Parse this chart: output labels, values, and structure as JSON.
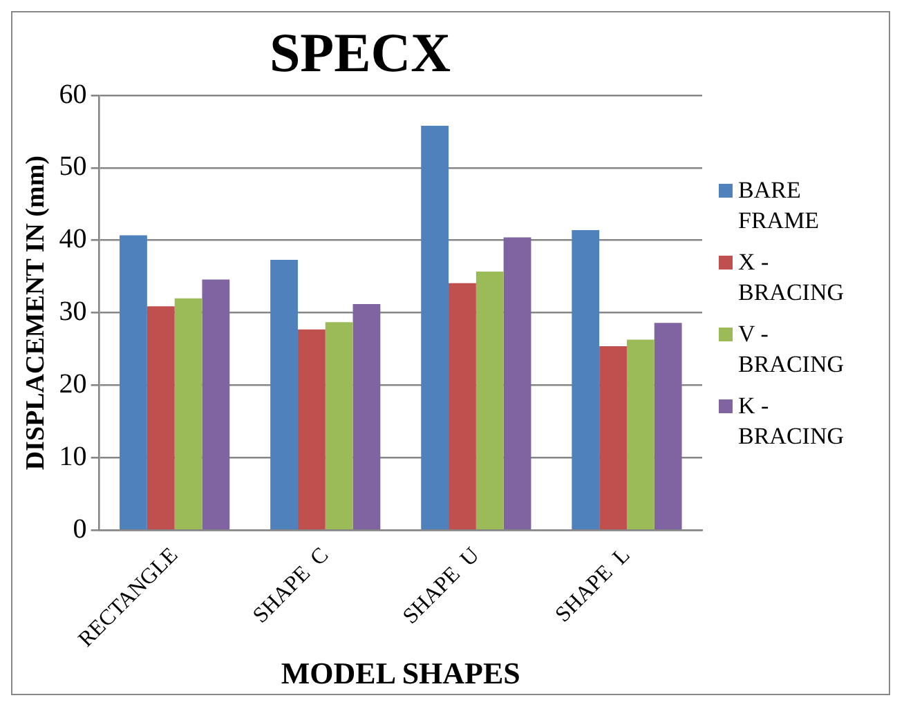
{
  "chart_data": {
    "type": "bar",
    "title": "SPECX",
    "xlabel": "MODEL SHAPES",
    "ylabel": "DISPLACEMENT IN (mm)",
    "categories": [
      "RECTANGLE",
      "SHAPE  C",
      "SHAPE  U",
      "SHAPE  L"
    ],
    "series": [
      {
        "name": "BARE FRAME",
        "color": "#4f81bd",
        "values": [
          40.7,
          37.3,
          55.8,
          41.4
        ]
      },
      {
        "name": "X - BRACING",
        "color": "#c0504d",
        "values": [
          30.9,
          27.7,
          34.1,
          25.4
        ]
      },
      {
        "name": "V - BRACING",
        "color": "#9bbb59",
        "values": [
          32.0,
          28.7,
          35.7,
          26.3
        ]
      },
      {
        "name": "K - BRACING",
        "color": "#8064a2",
        "values": [
          34.6,
          31.2,
          40.4,
          28.6
        ]
      }
    ],
    "ylim": [
      0,
      60
    ],
    "yticks": [
      0,
      10,
      20,
      30,
      40,
      50,
      60
    ],
    "grid": "y",
    "legend": "right"
  }
}
